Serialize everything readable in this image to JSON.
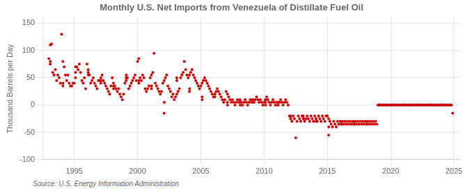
{
  "chart_data": {
    "type": "scatter",
    "title": "Monthly U.S. Net Imports from Venezuela of Distillate Fuel Oil",
    "ylabel": "Thousand Barrels per Day",
    "source": "Source: U.S. Energy Information Administration",
    "color": "#cc0000",
    "grid": true,
    "xlim": [
      1992.5,
      2025.5
    ],
    "ylim": [
      -100,
      160
    ],
    "xticks": [
      1995,
      2000,
      2005,
      2010,
      2015,
      2020,
      2025
    ],
    "yticks": [
      -100,
      -50,
      0,
      50,
      100,
      150
    ],
    "x": [
      1993.0,
      1993.1,
      1993.2,
      1993.3,
      1993.4,
      1993.5,
      1993.6,
      1993.7,
      1993.8,
      1993.9,
      1993.1,
      1993.11,
      1994.0,
      1994.1,
      1994.2,
      1994.3,
      1994.4,
      1994.5,
      1994.6,
      1994.7,
      1994.8,
      1994.9,
      1994.1,
      1994.11,
      1995.0,
      1995.1,
      1995.2,
      1995.3,
      1995.4,
      1995.5,
      1995.6,
      1995.7,
      1995.8,
      1995.9,
      1995.1,
      1995.11,
      1996.0,
      1996.1,
      1996.2,
      1996.3,
      1996.4,
      1996.5,
      1996.6,
      1996.7,
      1996.8,
      1996.9,
      1996.1,
      1996.11,
      1997.0,
      1997.1,
      1997.2,
      1997.3,
      1997.4,
      1997.5,
      1997.6,
      1997.7,
      1997.8,
      1997.9,
      1997.1,
      1997.11,
      1998.0,
      1998.1,
      1998.2,
      1998.3,
      1998.4,
      1998.5,
      1998.6,
      1998.7,
      1998.8,
      1998.9,
      1998.1,
      1998.11,
      1999.0,
      1999.1,
      1999.2,
      1999.3,
      1999.4,
      1999.5,
      1999.6,
      1999.7,
      1999.8,
      1999.9,
      1999.1,
      1999.11,
      2000.0,
      2000.1,
      2000.2,
      2000.3,
      2000.4,
      2000.5,
      2000.6,
      2000.7,
      2000.8,
      2000.9,
      2000.1,
      2000.11,
      2001.0,
      2001.1,
      2001.2,
      2001.3,
      2001.4,
      2001.5,
      2001.6,
      2001.7,
      2001.8,
      2001.9,
      2001.1,
      2001.11,
      2002.0,
      2002.1,
      2002.2,
      2002.3,
      2002.4,
      2002.5,
      2002.6,
      2002.7,
      2002.8,
      2002.9,
      2002.1,
      2002.11,
      2003.0,
      2003.1,
      2003.2,
      2003.3,
      2003.4,
      2003.5,
      2003.6,
      2003.7,
      2003.8,
      2003.9,
      2003.1,
      2003.11,
      2004.0,
      2004.1,
      2004.2,
      2004.3,
      2004.4,
      2004.5,
      2004.6,
      2004.7,
      2004.8,
      2004.9,
      2004.1,
      2004.11,
      2005.0,
      2005.1,
      2005.2,
      2005.3,
      2005.4,
      2005.5,
      2005.6,
      2005.7,
      2005.8,
      2005.9,
      2005.1,
      2005.11,
      2006.0,
      2006.1,
      2006.2,
      2006.3,
      2006.4,
      2006.5,
      2006.6,
      2006.7,
      2006.8,
      2006.9,
      2006.1,
      2006.11,
      2007.0,
      2007.1,
      2007.2,
      2007.3,
      2007.4,
      2007.5,
      2007.6,
      2007.7,
      2007.8,
      2007.9,
      2007.1,
      2007.11,
      2008.0,
      2008.1,
      2008.2,
      2008.3,
      2008.4,
      2008.5,
      2008.6,
      2008.7,
      2008.8,
      2008.9,
      2008.1,
      2008.11,
      2009.0,
      2009.1,
      2009.2,
      2009.3,
      2009.4,
      2009.5,
      2009.6,
      2009.7,
      2009.8,
      2009.9,
      2009.1,
      2009.11,
      2010.0,
      2010.1,
      2010.2,
      2010.3,
      2010.4,
      2010.5,
      2010.6,
      2010.7,
      2010.8,
      2010.9,
      2010.1,
      2010.11,
      2011.0,
      2011.1,
      2011.2,
      2011.3,
      2011.4,
      2011.5,
      2011.6,
      2011.7,
      2011.8,
      2011.9,
      2011.1,
      2011.11,
      2012.0,
      2012.1,
      2012.2,
      2012.3,
      2012.4,
      2012.5,
      2012.6,
      2012.7,
      2012.8,
      2012.9,
      2012.1,
      2012.11,
      2013.0,
      2013.1,
      2013.2,
      2013.3,
      2013.4,
      2013.5,
      2013.6,
      2013.7,
      2013.8,
      2013.9,
      2013.1,
      2013.11,
      2014.0,
      2014.1,
      2014.2,
      2014.3,
      2014.4,
      2014.5,
      2014.6,
      2014.7,
      2014.8,
      2014.9,
      2014.1,
      2014.11,
      2015.0,
      2015.1,
      2015.2,
      2015.3,
      2015.4,
      2015.5,
      2015.6,
      2015.7,
      2015.8,
      2015.9,
      2015.1,
      2015.11,
      2016.0,
      2016.1,
      2016.2,
      2016.3,
      2016.4,
      2016.5,
      2016.6,
      2016.7,
      2016.8,
      2016.9,
      2016.1,
      2016.11,
      2017.0,
      2017.1,
      2017.2,
      2017.3,
      2017.4,
      2017.5,
      2017.6,
      2017.7,
      2017.8,
      2017.9,
      2017.1,
      2017.11,
      2018.0,
      2018.1,
      2018.2,
      2018.3,
      2018.4,
      2018.5,
      2018.6,
      2018.7,
      2018.8,
      2018.9,
      2018.1,
      2018.11,
      2019.0,
      2019.1,
      2019.2,
      2019.3,
      2019.4,
      2019.5,
      2019.6,
      2019.7,
      2019.8,
      2019.9,
      2019.1,
      2019.11,
      2020.0,
      2020.1,
      2020.2,
      2020.3,
      2020.4,
      2020.5,
      2020.6,
      2020.7,
      2020.8,
      2020.9,
      2020.1,
      2020.11,
      2021.0,
      2021.1,
      2021.2,
      2021.3,
      2021.4,
      2021.5,
      2021.6,
      2021.7,
      2021.8,
      2021.9,
      2021.1,
      2021.11,
      2022.0,
      2022.1,
      2022.2,
      2022.3,
      2022.4,
      2022.5,
      2022.6,
      2022.7,
      2022.8,
      2022.9,
      2022.1,
      2022.11,
      2023.0,
      2023.1,
      2023.2,
      2023.3,
      2023.4,
      2023.5,
      2023.6,
      2023.7,
      2023.8,
      2023.9,
      2023.1,
      2023.11,
      2024.0,
      2024.1,
      2024.2,
      2024.3,
      2024.4,
      2024.5,
      2024.6,
      2024.7,
      2024.8,
      2024.9,
      2024.1,
      2024.11
    ],
    "values": [
      85,
      110,
      112,
      60,
      55,
      65,
      45,
      55,
      50,
      40,
      75,
      80,
      130,
      80,
      70,
      55,
      45,
      55,
      40,
      35,
      35,
      40,
      35,
      40,
      40,
      50,
      70,
      65,
      75,
      60,
      45,
      40,
      50,
      30,
      60,
      70,
      75,
      65,
      55,
      40,
      45,
      50,
      40,
      35,
      30,
      45,
      60,
      55,
      45,
      50,
      55,
      45,
      40,
      35,
      30,
      25,
      20,
      35,
      40,
      45,
      50,
      40,
      35,
      30,
      25,
      30,
      20,
      15,
      10,
      20,
      30,
      35,
      40,
      45,
      50,
      30,
      35,
      40,
      45,
      50,
      55,
      45,
      50,
      55,
      80,
      85,
      50,
      45,
      55,
      50,
      30,
      25,
      30,
      35,
      40,
      45,
      50,
      55,
      60,
      95,
      40,
      35,
      30,
      25,
      20,
      25,
      30,
      35,
      40,
      45,
      50,
      55,
      35,
      30,
      25,
      15,
      20,
      10,
      -15,
      5,
      15,
      20,
      25,
      30,
      50,
      55,
      60,
      80,
      65,
      55,
      50,
      45,
      50,
      55,
      60,
      65,
      55,
      50,
      45,
      40,
      35,
      30,
      25,
      30,
      35,
      40,
      45,
      50,
      45,
      40,
      35,
      30,
      25,
      20,
      15,
      10,
      15,
      20,
      25,
      30,
      25,
      20,
      15,
      10,
      5,
      10,
      15,
      20,
      25,
      20,
      15,
      10,
      5,
      10,
      5,
      0,
      5,
      10,
      5,
      0,
      5,
      10,
      5,
      0,
      5,
      10,
      5,
      0,
      5,
      10,
      5,
      0,
      5,
      10,
      5,
      10,
      15,
      10,
      5,
      10,
      5,
      0,
      5,
      10,
      5,
      10,
      15,
      10,
      5,
      0,
      5,
      10,
      5,
      0,
      5,
      0,
      5,
      0,
      5,
      10,
      5,
      0,
      5,
      10,
      5,
      0,
      5,
      0,
      -20,
      -25,
      -30,
      -20,
      -25,
      -60,
      -30,
      -20,
      -25,
      -30,
      -20,
      -25,
      -20,
      -25,
      -30,
      -25,
      -20,
      -25,
      -30,
      -20,
      -25,
      -30,
      -20,
      -25,
      -20,
      -25,
      -30,
      -20,
      -25,
      -30,
      -20,
      -25,
      -30,
      -20,
      -25,
      -30,
      -20,
      -25,
      -30,
      -35,
      -40,
      -30,
      -35,
      -40,
      -30,
      -35,
      -55,
      -40,
      -30,
      -35,
      -30,
      -35,
      -30,
      -35,
      -30,
      -35,
      -30,
      -35,
      -30,
      -35,
      -30,
      -35,
      -30,
      -35,
      -30,
      -35,
      -30,
      -35,
      -30,
      -35,
      -30,
      -35,
      -30,
      -35,
      -30,
      -35,
      -30,
      -35,
      -30,
      -35,
      -30,
      -35,
      -30,
      -35,
      0,
      0,
      0,
      0,
      0,
      0,
      0,
      0,
      0,
      0,
      0,
      0,
      0,
      0,
      0,
      0,
      0,
      0,
      0,
      0,
      0,
      0,
      0,
      0,
      0,
      0,
      0,
      0,
      0,
      0,
      0,
      0,
      0,
      0,
      0,
      0,
      0,
      0,
      0,
      0,
      0,
      0,
      0,
      0,
      0,
      0,
      0,
      0,
      0,
      0,
      0,
      0,
      0,
      0,
      0,
      0,
      0,
      0,
      0,
      0,
      0,
      0,
      0,
      0,
      0,
      0,
      0,
      0,
      0,
      -15,
      0,
      0
    ]
  }
}
